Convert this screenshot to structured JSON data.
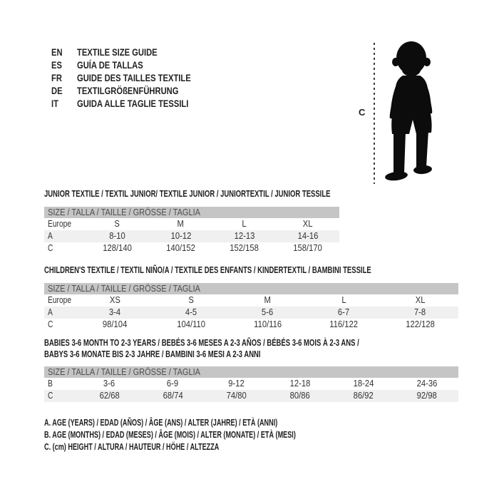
{
  "colors": {
    "header_bar": "#c5c5c5",
    "row_shaded": "#f0f0f0",
    "silhouette": "#0c0c0c",
    "text": "#2f2f2f"
  },
  "languages": {
    "items": [
      {
        "code": "EN",
        "label": "TEXTILE SIZE GUIDE"
      },
      {
        "code": "ES",
        "label": "GUÍA DE TALLAS"
      },
      {
        "code": "FR",
        "label": "GUIDE DES TAILLES TEXTILE"
      },
      {
        "code": "DE",
        "label": "TEXTILGRÖßENFÜHRUNG"
      },
      {
        "code": "IT",
        "label": "GUIDA ALLE TAGLIE TESSILI"
      }
    ]
  },
  "figure": {
    "height_label": "C"
  },
  "sections": [
    {
      "id": "junior",
      "title_lines": [
        "JUNIOR TEXTILE / TEXTIL JUNIOR/ TEXTILE JUNIOR / JUNIORTEXTIL / JUNIOR TESSILE"
      ],
      "size_header": "SIZE / TALLA / TAILLE / GRÖSSE / TAGLIA",
      "rows": [
        {
          "label": "Europe",
          "values": [
            "S",
            "M",
            "L",
            "XL"
          ],
          "shaded": false
        },
        {
          "label": "A",
          "values": [
            "8-10",
            "10-12",
            "12-13",
            "14-16"
          ],
          "shaded": true
        },
        {
          "label": "C",
          "values": [
            "128/140",
            "140/152",
            "152/158",
            "158/170"
          ],
          "shaded": false
        }
      ]
    },
    {
      "id": "children",
      "title_lines": [
        "CHILDREN'S TEXTILE / TEXTIL NIÑO/A / TEXTILE DES ENFANTS / KINDERTEXTIL / BAMBINI TESSILE"
      ],
      "size_header": "SIZE / TALLA / TAILLE / GRÖSSE / TAGLIA",
      "rows": [
        {
          "label": "Europe",
          "values": [
            "XS",
            "S",
            "M",
            "L",
            "XL"
          ],
          "shaded": false
        },
        {
          "label": "A",
          "values": [
            "3-4",
            "4-5",
            "5-6",
            "6-7",
            "7-8"
          ],
          "shaded": true
        },
        {
          "label": "C",
          "values": [
            "98/104",
            "104/110",
            "110/116",
            "116/122",
            "122/128"
          ],
          "shaded": false
        }
      ]
    },
    {
      "id": "babies",
      "title_lines": [
        "BABIES 3-6 MONTH TO 2-3 YEARS / BEBÉS 3-6 MESES A 2-3 AÑOS / BÉBÉS 3-6 MOIS À 2-3 ANS /",
        "BABYS 3-6 MONATE BIS 2-3 JAHRE / BAMBINI 3-6 MESI A 2-3 ANNI"
      ],
      "size_header": "SIZE / TALLA / TAILLE / GRÖSSE / TAGLIA",
      "rows": [
        {
          "label": "B",
          "values": [
            "3-6",
            "6-9",
            "9-12",
            "12-18",
            "18-24",
            "24-36"
          ],
          "shaded": false
        },
        {
          "label": "C",
          "values": [
            "62/68",
            "68/74",
            "74/80",
            "80/86",
            "86/92",
            "92/98"
          ],
          "shaded": true
        }
      ]
    }
  ],
  "legend": {
    "lines": [
      "A. AGE (YEARS) / EDAD (AÑOS) / ÂGE (ANS) / ALTER (JAHRE) / ETÀ (ANNI)",
      "B. AGE (MONTHS) / EDAD (MESES) / ÂGE (MOIS) / ALTER (MONATE) / ETÀ (MESI)",
      "C. (cm) HEIGHT / ALTURA / HAUTEUR / HÖHE / ALTEZZA"
    ]
  }
}
